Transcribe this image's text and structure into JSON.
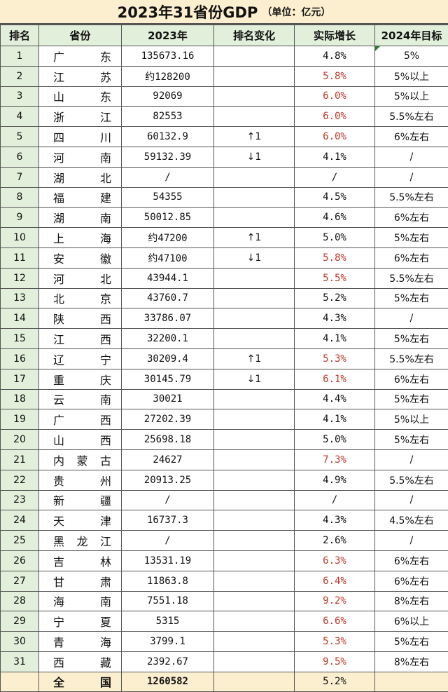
{
  "title": {
    "main": "2023年31省份GDP",
    "unit": "（单位：亿元）"
  },
  "headers": [
    "排名",
    "省份",
    "2023年",
    "排名变化",
    "实际增长",
    "2024年目标"
  ],
  "colors": {
    "title_bg": "#fcefd0",
    "header_bg": "#e2efda",
    "highlight_red": "#c0392b"
  },
  "rows": [
    {
      "rank": "1",
      "province": "广东",
      "gdp": "135673.16",
      "change": "",
      "growth": "4.8%",
      "red": false,
      "target": "5%"
    },
    {
      "rank": "2",
      "province": "江苏",
      "gdp": "约128200",
      "change": "",
      "growth": "5.8%",
      "red": true,
      "target": "5%以上"
    },
    {
      "rank": "3",
      "province": "山东",
      "gdp": "92069",
      "change": "",
      "growth": "6.0%",
      "red": true,
      "target": "5%以上"
    },
    {
      "rank": "4",
      "province": "浙江",
      "gdp": "82553",
      "change": "",
      "growth": "6.0%",
      "red": true,
      "target": "5.5%左右"
    },
    {
      "rank": "5",
      "province": "四川",
      "gdp": "60132.9",
      "change": "↑1",
      "growth": "6.0%",
      "red": true,
      "target": "6%左右"
    },
    {
      "rank": "6",
      "province": "河南",
      "gdp": "59132.39",
      "change": "↓1",
      "growth": "4.1%",
      "red": false,
      "target": "/"
    },
    {
      "rank": "7",
      "province": "湖北",
      "gdp": "/",
      "change": "",
      "growth": "/",
      "red": false,
      "target": "/"
    },
    {
      "rank": "8",
      "province": "福建",
      "gdp": "54355",
      "change": "",
      "growth": "4.5%",
      "red": false,
      "target": "5.5%左右"
    },
    {
      "rank": "9",
      "province": "湖南",
      "gdp": "50012.85",
      "change": "",
      "growth": "4.6%",
      "red": false,
      "target": "6%左右"
    },
    {
      "rank": "10",
      "province": "上海",
      "gdp": "约47200",
      "change": "↑1",
      "growth": "5.0%",
      "red": false,
      "target": "5%左右"
    },
    {
      "rank": "11",
      "province": "安徽",
      "gdp": "约47100",
      "change": "↓1",
      "growth": "5.8%",
      "red": true,
      "target": "6%左右"
    },
    {
      "rank": "12",
      "province": "河北",
      "gdp": "43944.1",
      "change": "",
      "growth": "5.5%",
      "red": true,
      "target": "5.5%左右"
    },
    {
      "rank": "13",
      "province": "北京",
      "gdp": "43760.7",
      "change": "",
      "growth": "5.2%",
      "red": false,
      "target": "5%左右"
    },
    {
      "rank": "14",
      "province": "陕西",
      "gdp": "33786.07",
      "change": "",
      "growth": "4.3%",
      "red": false,
      "target": "/"
    },
    {
      "rank": "15",
      "province": "江西",
      "gdp": "32200.1",
      "change": "",
      "growth": "4.1%",
      "red": false,
      "target": "5%左右"
    },
    {
      "rank": "16",
      "province": "辽宁",
      "gdp": "30209.4",
      "change": "↑1",
      "growth": "5.3%",
      "red": true,
      "target": "5.5%左右"
    },
    {
      "rank": "17",
      "province": "重庆",
      "gdp": "30145.79",
      "change": "↓1",
      "growth": "6.1%",
      "red": true,
      "target": "6%左右"
    },
    {
      "rank": "18",
      "province": "云南",
      "gdp": "30021",
      "change": "",
      "growth": "4.4%",
      "red": false,
      "target": "5%左右"
    },
    {
      "rank": "19",
      "province": "广西",
      "gdp": "27202.39",
      "change": "",
      "growth": "4.1%",
      "red": false,
      "target": "5%以上"
    },
    {
      "rank": "20",
      "province": "山西",
      "gdp": "25698.18",
      "change": "",
      "growth": "5.0%",
      "red": false,
      "target": "5%左右"
    },
    {
      "rank": "21",
      "province": "内蒙古",
      "gdp": "24627",
      "change": "",
      "growth": "7.3%",
      "red": true,
      "target": "/"
    },
    {
      "rank": "22",
      "province": "贵州",
      "gdp": "20913.25",
      "change": "",
      "growth": "4.9%",
      "red": false,
      "target": "5.5%左右"
    },
    {
      "rank": "23",
      "province": "新疆",
      "gdp": "/",
      "change": "",
      "growth": "/",
      "red": false,
      "target": "/"
    },
    {
      "rank": "24",
      "province": "天津",
      "gdp": "16737.3",
      "change": "",
      "growth": "4.3%",
      "red": false,
      "target": "4.5%左右"
    },
    {
      "rank": "25",
      "province": "黑龙江",
      "gdp": "/",
      "change": "",
      "growth": "2.6%",
      "red": false,
      "target": "/"
    },
    {
      "rank": "26",
      "province": "吉林",
      "gdp": "13531.19",
      "change": "",
      "growth": "6.3%",
      "red": true,
      "target": "6%左右"
    },
    {
      "rank": "27",
      "province": "甘肃",
      "gdp": "11863.8",
      "change": "",
      "growth": "6.4%",
      "red": true,
      "target": "6%左右"
    },
    {
      "rank": "28",
      "province": "海南",
      "gdp": "7551.18",
      "change": "",
      "growth": "9.2%",
      "red": true,
      "target": "8%左右"
    },
    {
      "rank": "29",
      "province": "宁夏",
      "gdp": "5315",
      "change": "",
      "growth": "6.6%",
      "red": true,
      "target": "6%以上"
    },
    {
      "rank": "30",
      "province": "青海",
      "gdp": "3799.1",
      "change": "",
      "growth": "5.3%",
      "red": true,
      "target": "5%左右"
    },
    {
      "rank": "31",
      "province": "西藏",
      "gdp": "2392.67",
      "change": "",
      "growth": "9.5%",
      "red": true,
      "target": "8%左右"
    }
  ],
  "total": {
    "rank": "",
    "province": "全国",
    "gdp": "1260582",
    "change": "",
    "growth": "5.2%",
    "target": ""
  }
}
